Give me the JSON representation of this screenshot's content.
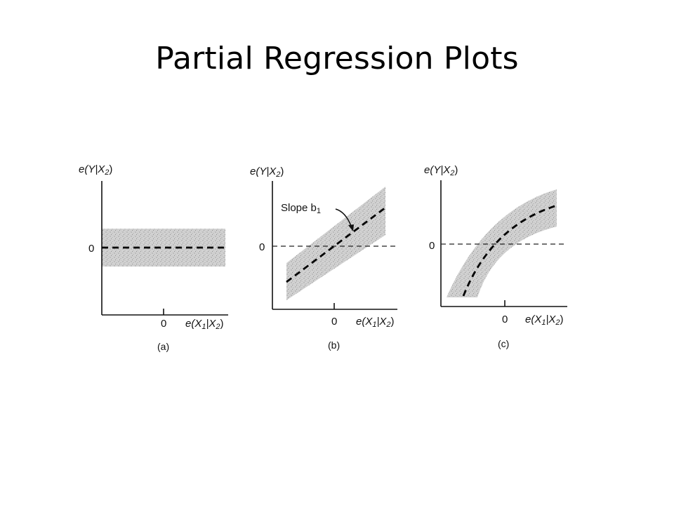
{
  "title": "Partial Regression Plots",
  "panels": [
    {
      "caption": "(a)",
      "y_label": "e(Y|X",
      "y_label_sub": "2",
      "x_label": "e(X",
      "x_label_sub1": "1",
      "x_label_sub2": "2",
      "zero_y": "0",
      "zero_x": "0"
    },
    {
      "caption": "(b)",
      "y_label": "e(Y|X",
      "y_label_sub": "2",
      "x_label": "e(X",
      "x_label_sub1": "1",
      "x_label_sub2": "2",
      "zero_y": "0",
      "zero_x": "0",
      "annotation": "Slope b",
      "annotation_sub": "1"
    },
    {
      "caption": "(c)",
      "y_label": "e(Y|X",
      "y_label_sub": "2",
      "x_label": "e(X",
      "x_label_sub1": "1",
      "x_label_sub2": "2",
      "zero_y": "0",
      "zero_x": "0"
    }
  ],
  "colors": {
    "band": "#c8c8c8",
    "line": "#000000",
    "background": "#ffffff"
  }
}
